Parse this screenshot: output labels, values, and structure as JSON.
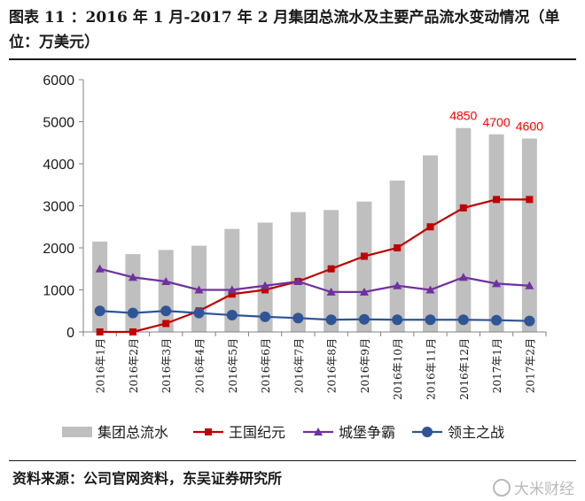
{
  "header": {
    "title": "图表 11 ：2016 年 1 月-2017 年 2 月集团总流水及主要产品流水变动情况（单位：万美元）"
  },
  "footer": {
    "source": "资料来源：公司官网资料，东吴证券研究所",
    "watermark": "大米财经"
  },
  "colors": {
    "bar": "#bfbfbf",
    "wangguo": "#c00000",
    "chengbao": "#7030a0",
    "lingzhu": "#2f5597",
    "label": "#ff0000",
    "axis": "#808080"
  },
  "chart_data": {
    "type": "bar+line",
    "title": "",
    "xlabel": "",
    "ylabel": "",
    "ylim": [
      0,
      6000
    ],
    "yticks": [
      0,
      1000,
      2000,
      3000,
      4000,
      5000,
      6000
    ],
    "grid": false,
    "legend_position": "bottom",
    "categories": [
      "2016年1月",
      "2016年2月",
      "2016年3月",
      "2016年4月",
      "2016年5月",
      "2016年6月",
      "2016年7月",
      "2016年8月",
      "2016年9月",
      "2016年10月",
      "2016年11月",
      "2016年12月",
      "2017年1月",
      "2017年2月"
    ],
    "series": [
      {
        "name": "集团总流水",
        "kind": "bar",
        "color": "#bfbfbf",
        "values": [
          2150,
          1850,
          1950,
          2050,
          2450,
          2600,
          2850,
          2900,
          3100,
          3600,
          4200,
          4850,
          4700,
          4600
        ]
      },
      {
        "name": "王国纪元",
        "kind": "line",
        "marker": "square",
        "color": "#c00000",
        "values": [
          0,
          0,
          200,
          500,
          900,
          1000,
          1200,
          1500,
          1800,
          2000,
          2500,
          2950,
          3150,
          3150
        ]
      },
      {
        "name": "城堡争霸",
        "kind": "line",
        "marker": "triangle",
        "color": "#7030a0",
        "values": [
          1500,
          1300,
          1200,
          1000,
          1000,
          1100,
          1200,
          950,
          950,
          1100,
          1000,
          1300,
          1150,
          1100
        ]
      },
      {
        "name": "领主之战",
        "kind": "line",
        "marker": "circle",
        "color": "#2f5597",
        "values": [
          500,
          450,
          500,
          450,
          400,
          360,
          330,
          290,
          300,
          290,
          290,
          290,
          280,
          260
        ]
      }
    ],
    "annotations": [
      {
        "category": "2016年12月",
        "text": "4850"
      },
      {
        "category": "2017年1月",
        "text": "4700"
      },
      {
        "category": "2017年2月",
        "text": "4600"
      }
    ]
  }
}
